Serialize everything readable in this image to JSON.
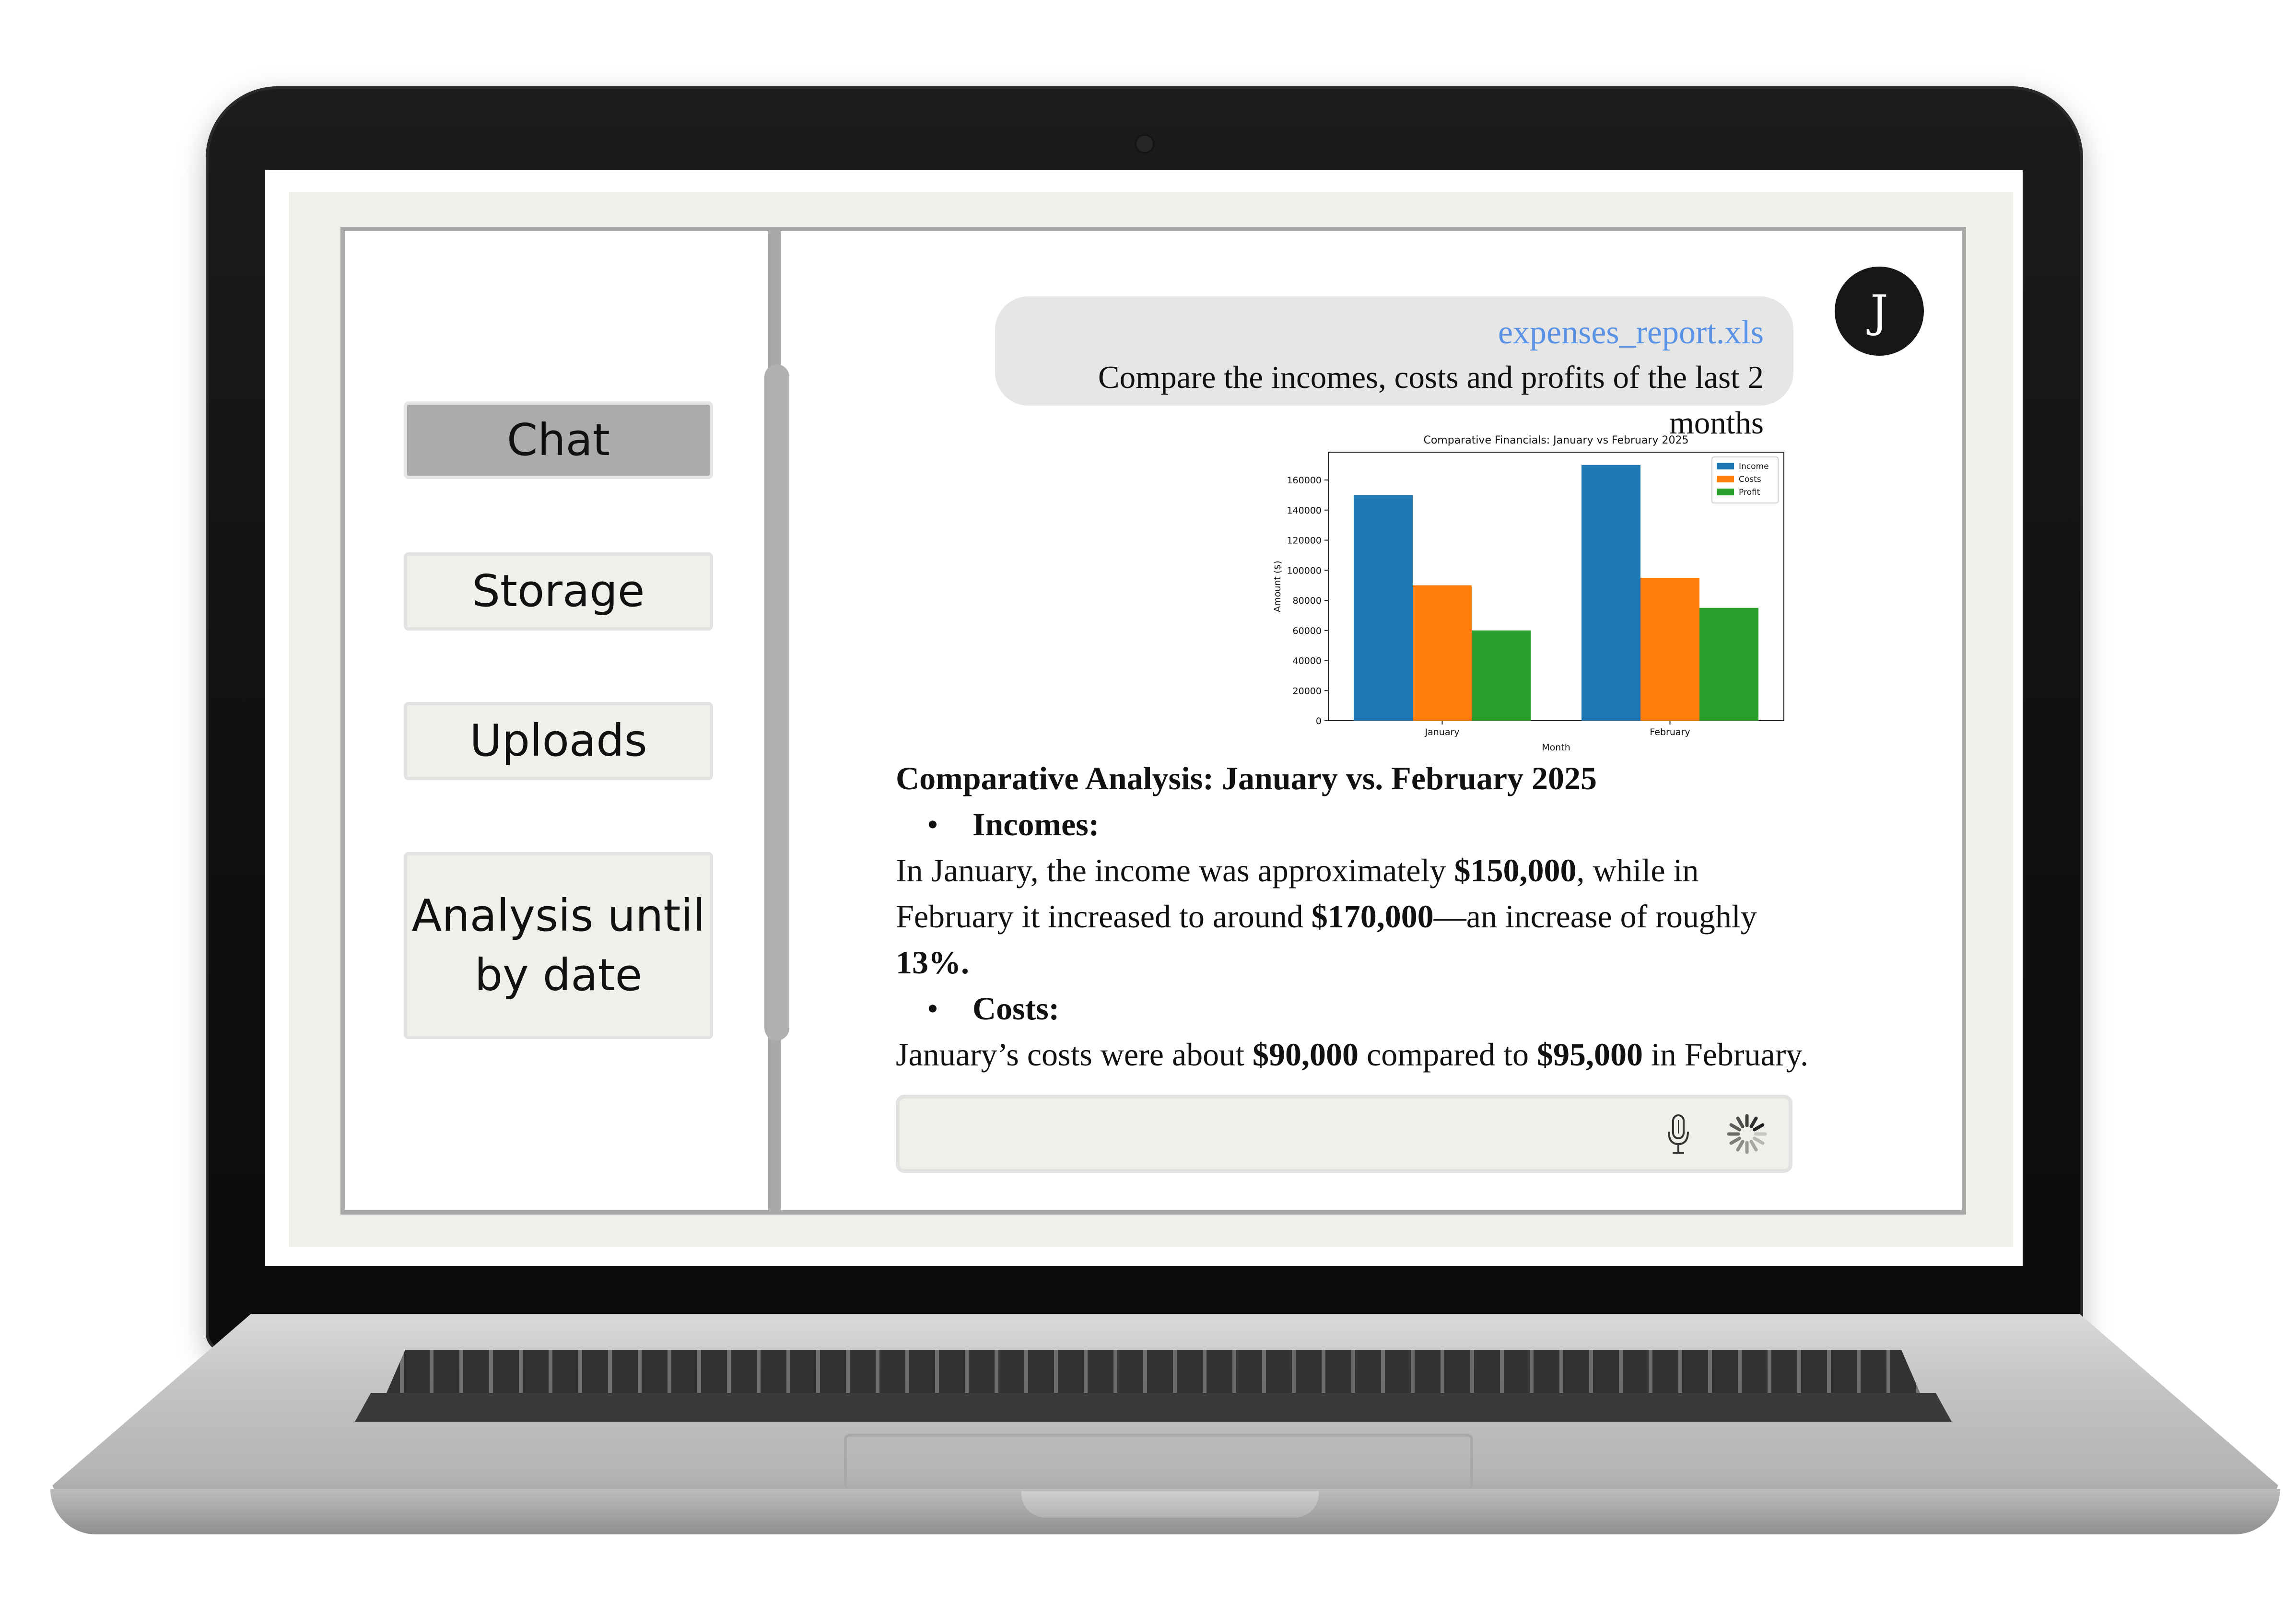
{
  "sidebar": {
    "items": [
      {
        "label": "Chat",
        "active": true
      },
      {
        "label": "Storage",
        "active": false
      },
      {
        "label": "Uploads",
        "active": false
      },
      {
        "label": "Analysis until by date",
        "line1": "Analysis until",
        "line2": "by date",
        "active": false
      }
    ]
  },
  "user": {
    "avatar_initial": "J"
  },
  "message": {
    "attachment": "expenses_report.xls",
    "text": "Compare the incomes, costs and profits of the last 2 months"
  },
  "answer": {
    "heading": "Comparative Analysis: January vs. February 2025",
    "incomes_label": "Incomes:",
    "incomes_text": {
      "a": "In January, the income was approximately ",
      "b": "$150,000",
      "c": ", while in February it increased to around ",
      "d": "$170,000",
      "e": "—an increase of roughly ",
      "f": "13%",
      "g": "."
    },
    "costs_label": "Costs:",
    "costs_text": {
      "a": "January’s costs were about ",
      "b": "$90,000",
      "c": " compared to ",
      "d": "$95,000",
      "e": " in February."
    }
  },
  "input": {
    "value": "",
    "mic_icon": "microphone-icon",
    "loading_icon": "spinner-icon"
  },
  "colors": {
    "accent_link": "#5a93e6",
    "income": "#1f77b4",
    "costs": "#ff7f0e",
    "profit": "#2ca02c"
  },
  "chart_data": {
    "type": "bar",
    "title": "Comparative Financials: January vs February 2025",
    "xlabel": "Month",
    "ylabel": "Amount ($)",
    "categories": [
      "January",
      "February"
    ],
    "series": [
      {
        "name": "Income",
        "values": [
          150000,
          170000
        ],
        "color": "#1f77b4"
      },
      {
        "name": "Costs",
        "values": [
          90000,
          95000
        ],
        "color": "#ff7f0e"
      },
      {
        "name": "Profit",
        "values": [
          60000,
          75000
        ],
        "color": "#2ca02c"
      }
    ],
    "yticks": [
      0,
      20000,
      40000,
      60000,
      80000,
      100000,
      120000,
      140000,
      160000
    ],
    "ylim": [
      0,
      178500
    ],
    "legend": "top-right",
    "grid": false
  }
}
